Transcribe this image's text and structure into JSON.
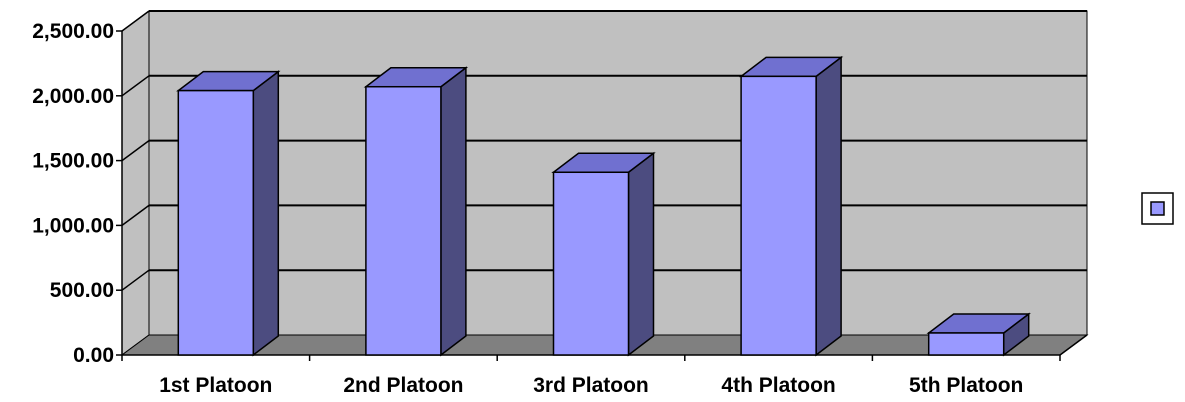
{
  "chart_data": {
    "type": "bar",
    "style": "3d-column",
    "categories": [
      "1st Platoon",
      "2nd Platoon",
      "3rd Platoon",
      "4th Platoon",
      "5th Platoon"
    ],
    "series": [
      {
        "values": [
          2040,
          2070,
          1410,
          2150,
          170
        ]
      }
    ],
    "y_ticks": [
      "0.00",
      "500.00",
      "1,000.00",
      "1,500.00",
      "2,000.00",
      "2,500.00"
    ],
    "ylim": [
      0,
      2500
    ],
    "grid": true,
    "legend": {
      "position": "right",
      "entries": [
        ""
      ]
    },
    "colors": {
      "wall": "#c0c0c0",
      "floor": "#808080",
      "bar_front": "#9999ff",
      "bar_top": "#7070d0",
      "bar_side": "#4c4c80",
      "gridline": "#000000"
    }
  }
}
